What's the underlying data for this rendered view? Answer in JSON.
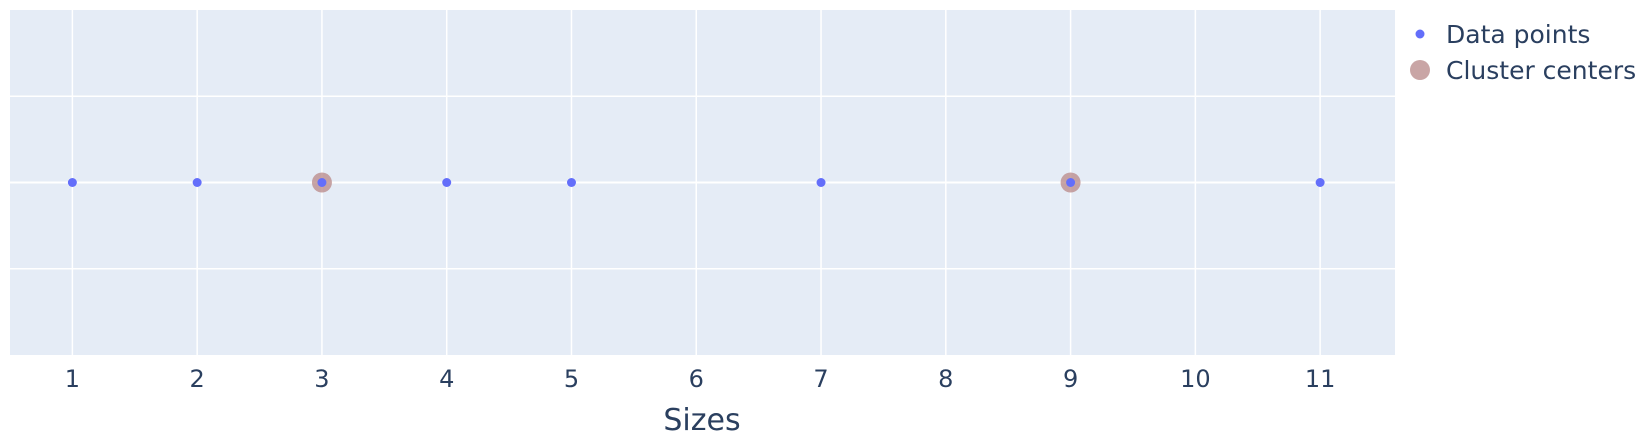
{
  "chart_data": {
    "type": "scatter",
    "title": "",
    "xlabel": "Sizes",
    "ylabel": "",
    "xlim": [
      0.5,
      11.6
    ],
    "ylim": [
      -2,
      2
    ],
    "xticks": [
      1,
      2,
      3,
      4,
      5,
      6,
      7,
      8,
      9,
      10,
      11
    ],
    "xtick_labels": [
      "1",
      "2",
      "3",
      "4",
      "5",
      "6",
      "7",
      "8",
      "9",
      "10",
      "11"
    ],
    "yticks": [
      -1,
      0,
      1
    ],
    "grid": true,
    "legend_position": "top-right",
    "colors": {
      "plot_background": "#e5ecf6",
      "grid": "#ffffff",
      "axis_text": "#2a3f5f"
    },
    "series": [
      {
        "name": "Data points",
        "color": "#636efa",
        "marker_size": "small",
        "x": [
          1,
          2,
          3,
          4,
          5,
          7,
          9,
          11
        ],
        "y": [
          0,
          0,
          0,
          0,
          0,
          0,
          0,
          0
        ]
      },
      {
        "name": "Cluster centers",
        "color": "#bc8f8f",
        "marker_size": "large",
        "x": [
          3,
          9
        ],
        "y": [
          0,
          0
        ]
      }
    ]
  }
}
